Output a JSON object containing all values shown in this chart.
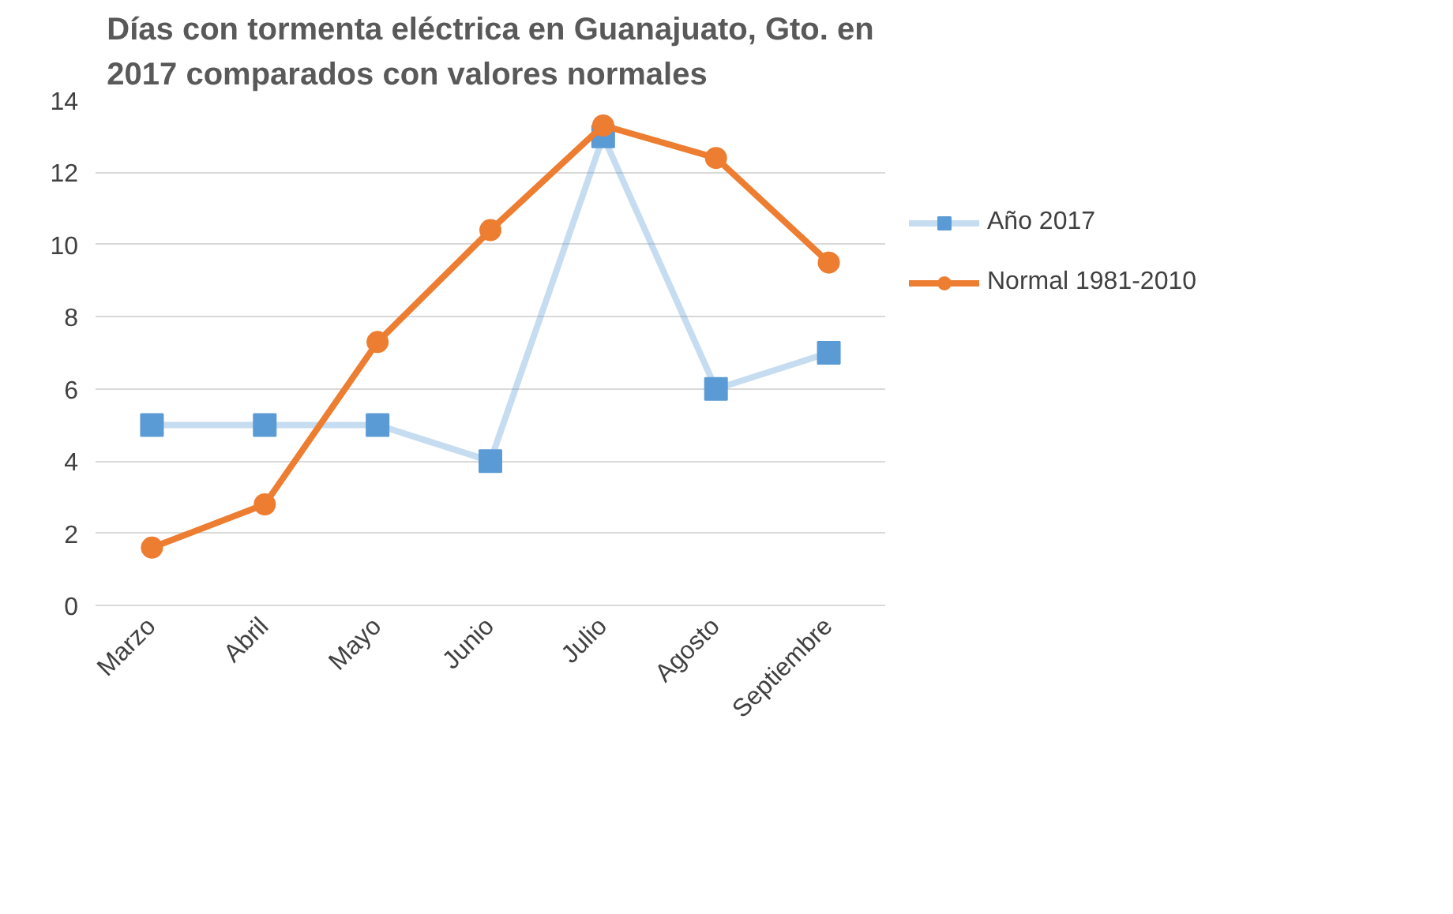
{
  "chart_data": {
    "type": "line",
    "title": "Días con tormenta eléctrica en Guanajuato, Gto. en 2017 comparados con valores normales",
    "categories": [
      "Marzo",
      "Abril",
      "Mayo",
      "Junio",
      "Julio",
      "Agosto",
      "Septiembre"
    ],
    "series": [
      {
        "name": "Año 2017",
        "color": "#5b9bd5",
        "marker": "square",
        "values": [
          5,
          5,
          5,
          4,
          13,
          6,
          7
        ]
      },
      {
        "name": "Normal 1981-2010",
        "color": "#ed7d31",
        "marker": "circle",
        "values": [
          1.6,
          2.8,
          7.3,
          10.4,
          13.3,
          12.4,
          9.5
        ]
      }
    ],
    "ylim": [
      0,
      14
    ],
    "yticks": [
      0,
      2,
      4,
      6,
      8,
      10,
      12,
      14
    ],
    "grid": "y",
    "legend": "right"
  }
}
